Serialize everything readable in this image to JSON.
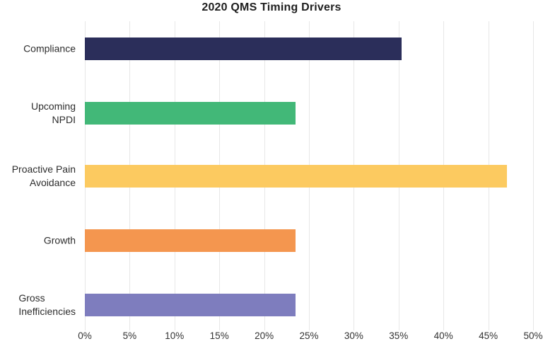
{
  "chart_data": {
    "type": "bar",
    "orientation": "horizontal",
    "title": "2020 QMS Timing Drivers",
    "categories": [
      "Compliance",
      "Upcoming NPDI",
      "Proactive Pain Avoidance",
      "Growth",
      "Gross Inefficiencies"
    ],
    "wrapped_labels": [
      "Compliance",
      "Upcoming\nNPDI",
      "Proactive Pain\nAvoidance",
      "Growth",
      "Gross\nInefficiencies"
    ],
    "values": [
      35.3,
      23.5,
      47.1,
      23.5,
      23.5
    ],
    "value_unit": "%",
    "series_colors": [
      "#2b2e5a",
      "#42b878",
      "#fcca60",
      "#f4964f",
      "#7e7dbe"
    ],
    "xlim": [
      0,
      50
    ],
    "x_ticks": [
      "0%",
      "5%",
      "10%",
      "15%",
      "20%",
      "25%",
      "30%",
      "35%",
      "40%",
      "45%",
      "50%"
    ],
    "x_tick_values": [
      0,
      5,
      10,
      15,
      20,
      25,
      30,
      35,
      40,
      45,
      50
    ],
    "grid": "vertical",
    "gridline_color": "#e7e7e7",
    "legend": "none",
    "background": "#ffffff",
    "title_color": "#1f1f1f",
    "label_color": "#2d2d2d"
  }
}
